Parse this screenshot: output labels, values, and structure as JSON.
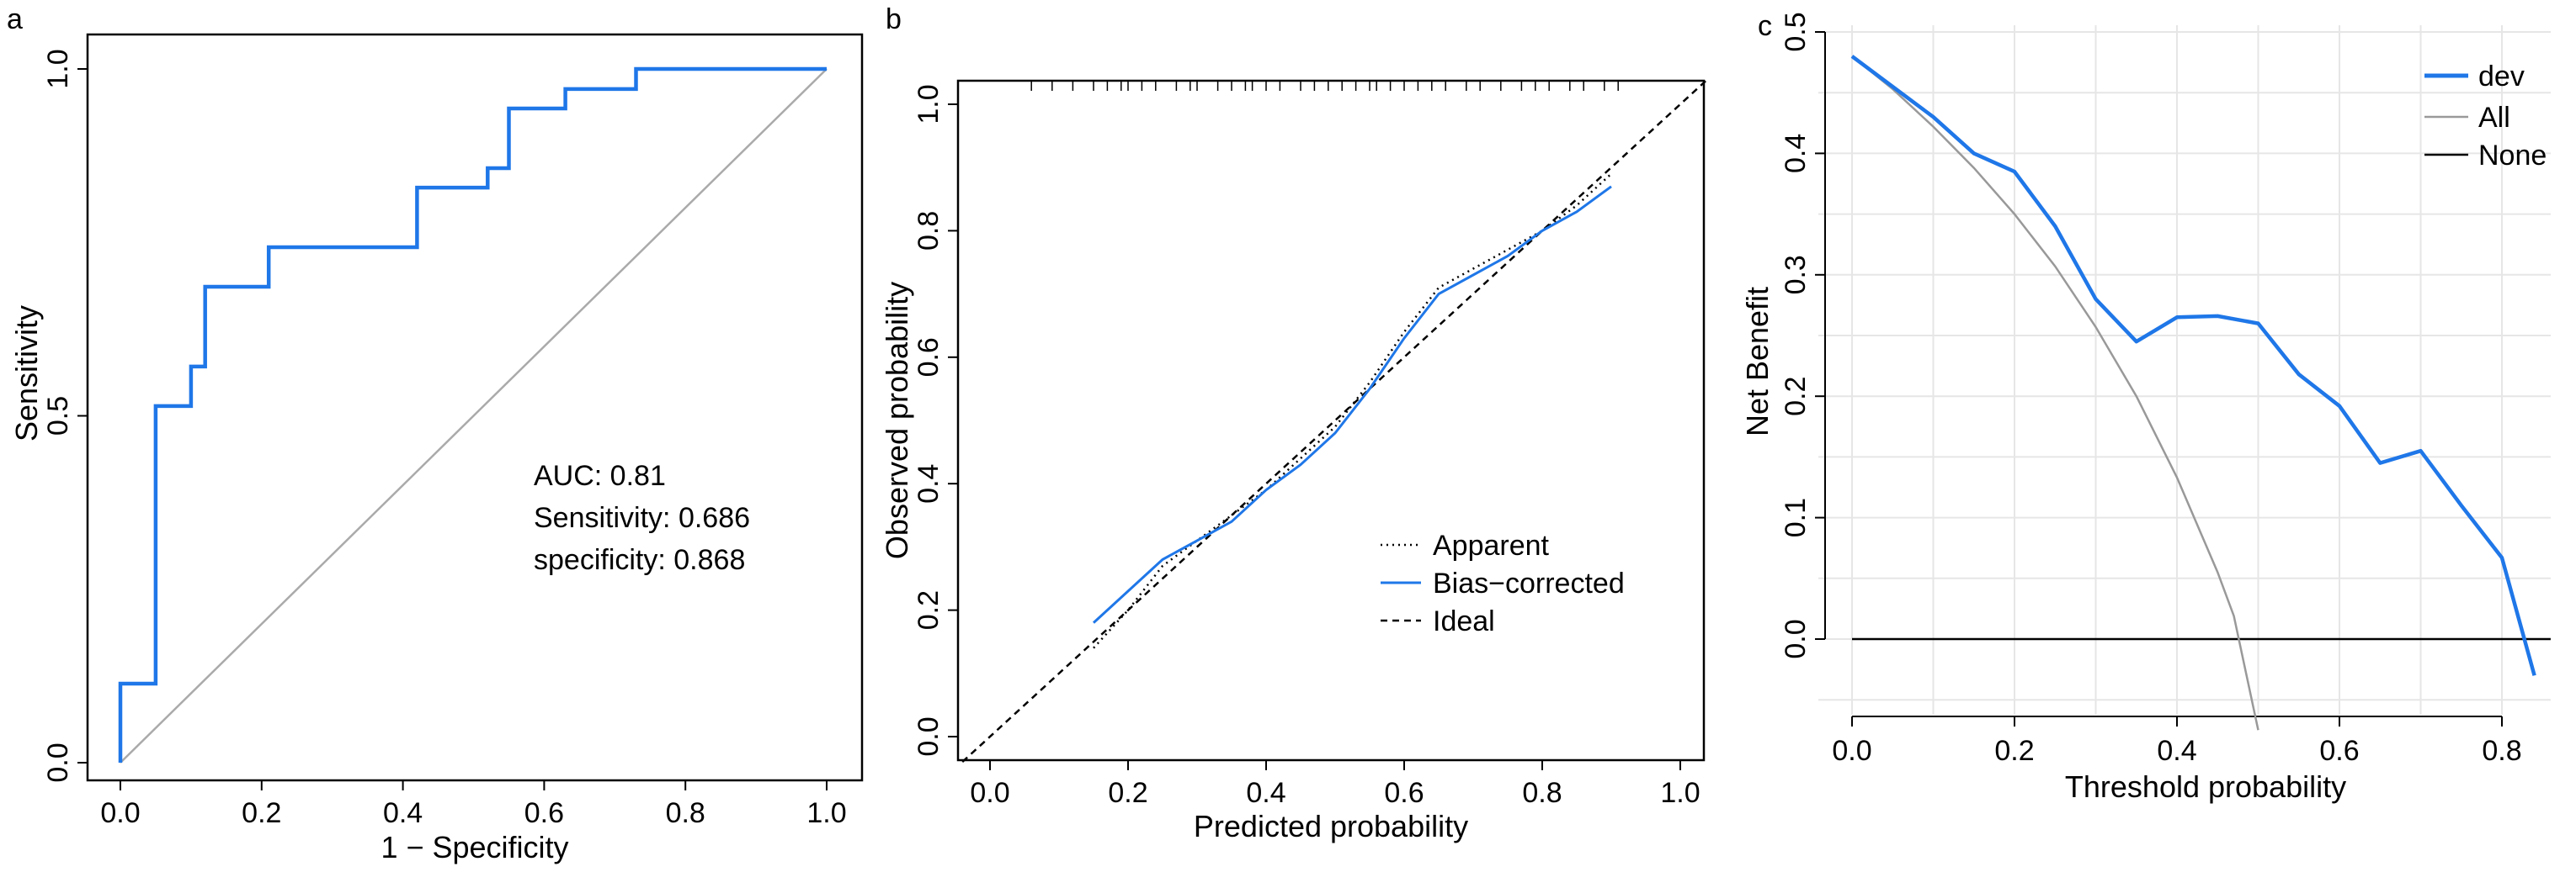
{
  "chart_data": [
    {
      "panel": "a",
      "type": "line",
      "xlabel": "1 − Specificity",
      "ylabel": "Sensitivity",
      "xlim": [
        0,
        1
      ],
      "ylim": [
        0,
        1
      ],
      "xticks": [
        "0.0",
        "0.2",
        "0.4",
        "0.6",
        "0.8",
        "1.0"
      ],
      "xtick_values": [
        0,
        0.2,
        0.4,
        0.6,
        0.8,
        1.0
      ],
      "yticks": [
        "0.0",
        "0.5",
        "1.0"
      ],
      "ytick_values": [
        0,
        0.5,
        1.0
      ],
      "grid": false,
      "annotations": [
        "AUC: 0.81",
        "Sensitivity: 0.686",
        "specificity: 0.868"
      ],
      "series": [
        {
          "color": "#1f77e8",
          "x": [
            0,
            0,
            0.05,
            0.05,
            0.1,
            0.1,
            0.12,
            0.12,
            0.21,
            0.21,
            0.42,
            0.42,
            0.52,
            0.52,
            0.55,
            0.55,
            0.63,
            0.63,
            0.73,
            0.73,
            1.0
          ],
          "y": [
            0,
            0.114,
            0.114,
            0.514,
            0.514,
            0.571,
            0.571,
            0.686,
            0.686,
            0.743,
            0.743,
            0.829,
            0.829,
            0.857,
            0.857,
            0.943,
            0.943,
            0.971,
            0.971,
            1.0,
            1.0
          ]
        },
        {
          "color": "#aaaaaa",
          "x": [
            0,
            1
          ],
          "y": [
            0,
            1
          ]
        }
      ]
    },
    {
      "panel": "b",
      "type": "line",
      "xlabel": "Predicted probability",
      "ylabel": "Observed probability",
      "xlim": [
        0,
        1
      ],
      "ylim": [
        0,
        1
      ],
      "xticks": [
        "0.0",
        "0.2",
        "0.4",
        "0.6",
        "0.8",
        "1.0"
      ],
      "xtick_values": [
        0,
        0.2,
        0.4,
        0.6,
        0.8,
        1.0
      ],
      "yticks": [
        "0.0",
        "0.2",
        "0.4",
        "0.6",
        "0.8",
        "1.0"
      ],
      "ytick_values": [
        0,
        0.2,
        0.4,
        0.6,
        0.8,
        1.0
      ],
      "grid": false,
      "legend_position": "bottom-right",
      "rug_x": [
        0.06,
        0.09,
        0.12,
        0.15,
        0.17,
        0.19,
        0.2,
        0.22,
        0.24,
        0.27,
        0.29,
        0.3,
        0.33,
        0.35,
        0.37,
        0.38,
        0.4,
        0.42,
        0.45,
        0.47,
        0.49,
        0.51,
        0.53,
        0.55,
        0.56,
        0.58,
        0.6,
        0.62,
        0.64,
        0.66,
        0.69,
        0.71,
        0.74,
        0.77,
        0.79,
        0.81,
        0.84,
        0.86,
        0.89,
        0.91
      ],
      "series": [
        {
          "name": "Apparent",
          "style": "dotted",
          "color": "#000000",
          "x": [
            0.15,
            0.2,
            0.25,
            0.3,
            0.35,
            0.4,
            0.45,
            0.5,
            0.55,
            0.6,
            0.65,
            0.7,
            0.75,
            0.8,
            0.85,
            0.9
          ],
          "y": [
            0.14,
            0.2,
            0.27,
            0.31,
            0.35,
            0.39,
            0.44,
            0.49,
            0.56,
            0.64,
            0.71,
            0.74,
            0.77,
            0.8,
            0.84,
            0.89
          ]
        },
        {
          "name": "Bias−corrected",
          "style": "solid",
          "color": "#1f77e8",
          "x": [
            0.15,
            0.2,
            0.25,
            0.3,
            0.35,
            0.4,
            0.45,
            0.5,
            0.55,
            0.6,
            0.65,
            0.7,
            0.75,
            0.8,
            0.85,
            0.9
          ],
          "y": [
            0.18,
            0.23,
            0.28,
            0.31,
            0.34,
            0.39,
            0.43,
            0.48,
            0.55,
            0.63,
            0.7,
            0.73,
            0.76,
            0.8,
            0.83,
            0.87
          ]
        },
        {
          "name": "Ideal",
          "style": "dashed",
          "color": "#000000",
          "x": [
            -0.04,
            1.04
          ],
          "y": [
            -0.04,
            1.04
          ]
        }
      ]
    },
    {
      "panel": "c",
      "type": "line",
      "xlabel": "Threshold probability",
      "ylabel": "Net Benefit",
      "xlim": [
        0,
        0.84
      ],
      "ylim": [
        -0.075,
        0.5
      ],
      "xticks": [
        "0.0",
        "0.2",
        "0.4",
        "0.6",
        "0.8"
      ],
      "xtick_values": [
        0,
        0.2,
        0.4,
        0.6,
        0.8
      ],
      "yticks": [
        "0.0",
        "0.1",
        "0.2",
        "0.3",
        "0.4",
        "0.5"
      ],
      "ytick_values": [
        0,
        0.1,
        0.2,
        0.3,
        0.4,
        0.5
      ],
      "grid": true,
      "legend_position": "top-right",
      "series": [
        {
          "name": "dev",
          "color": "#1f77e8",
          "x": [
            0.0,
            0.04,
            0.1,
            0.15,
            0.2,
            0.25,
            0.3,
            0.35,
            0.4,
            0.45,
            0.5,
            0.55,
            0.6,
            0.65,
            0.7,
            0.75,
            0.8,
            0.84
          ],
          "y": [
            0.48,
            0.46,
            0.43,
            0.4,
            0.385,
            0.34,
            0.28,
            0.245,
            0.265,
            0.266,
            0.26,
            0.218,
            0.192,
            0.145,
            0.155,
            0.11,
            0.067,
            -0.03
          ]
        },
        {
          "name": "All",
          "color": "#999999",
          "x": [
            0.0,
            0.05,
            0.1,
            0.15,
            0.2,
            0.25,
            0.3,
            0.35,
            0.4,
            0.45,
            0.47,
            0.5
          ],
          "y": [
            0.48,
            0.453,
            0.422,
            0.388,
            0.35,
            0.307,
            0.257,
            0.2,
            0.133,
            0.055,
            0.019,
            -0.075
          ]
        },
        {
          "name": "None",
          "color": "#000000",
          "x": [
            0.0,
            0.86
          ],
          "y": [
            0.0,
            0.0
          ]
        }
      ]
    }
  ]
}
